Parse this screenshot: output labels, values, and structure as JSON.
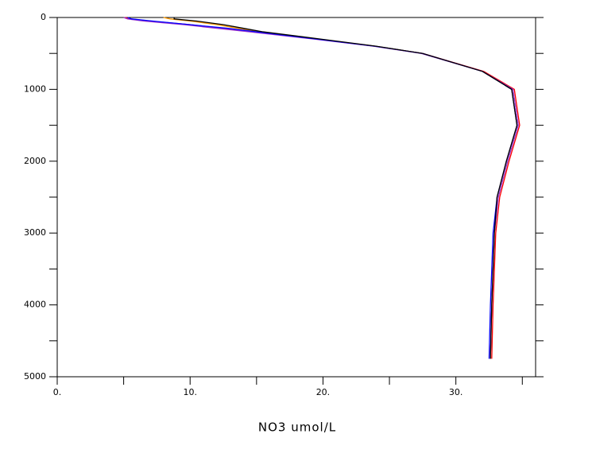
{
  "chart_data": {
    "type": "line",
    "x_label": "NO3  umol/L",
    "y": [
      0,
      20,
      50,
      100,
      150,
      200,
      300,
      400,
      500,
      750,
      1000,
      1500,
      2000,
      2500,
      3000,
      4000,
      4750
    ],
    "series": [
      {
        "color": "#ff9900",
        "values": [
          8.0,
          8.5,
          10.0,
          12.0,
          13.6,
          15.2,
          19.6,
          23.9,
          27.5,
          32.0,
          34.2,
          34.6,
          33.8,
          33.1,
          32.9,
          32.7,
          32.6
        ]
      },
      {
        "color": "#ff0000",
        "values": [
          5.1,
          5.5,
          7.0,
          10.0,
          12.5,
          14.8,
          19.5,
          23.9,
          27.5,
          32.1,
          34.4,
          34.8,
          34.0,
          33.3,
          33.0,
          32.8,
          32.7
        ]
      },
      {
        "color": "#9933cc",
        "values": [
          5.0,
          5.3,
          6.5,
          9.5,
          12.0,
          14.5,
          19.3,
          23.8,
          27.4,
          32.0,
          34.3,
          34.7,
          33.9,
          33.2,
          32.9,
          32.7,
          32.6
        ]
      },
      {
        "color": "#0000ff",
        "values": [
          5.3,
          5.6,
          7.2,
          10.0,
          12.8,
          15.0,
          19.5,
          23.9,
          27.5,
          32.0,
          34.2,
          34.6,
          33.8,
          33.1,
          32.8,
          32.6,
          32.5
        ]
      },
      {
        "color": "#000000",
        "values": [
          8.8,
          8.8,
          10.5,
          12.5,
          14.0,
          15.5,
          19.8,
          24.0,
          27.5,
          32.0,
          34.2,
          34.6,
          33.8,
          33.1,
          32.9,
          32.7,
          32.6
        ]
      }
    ],
    "xlim": [
      0,
      36
    ],
    "ylim": [
      0,
      5000
    ],
    "y_inverted": true,
    "xticks": [
      {
        "value": 0,
        "label": "0."
      },
      {
        "value": 10,
        "label": "10."
      },
      {
        "value": 20,
        "label": "20."
      },
      {
        "value": 30,
        "label": "30."
      }
    ],
    "yticks": [
      0,
      1000,
      2000,
      3000,
      4000,
      5000
    ]
  }
}
